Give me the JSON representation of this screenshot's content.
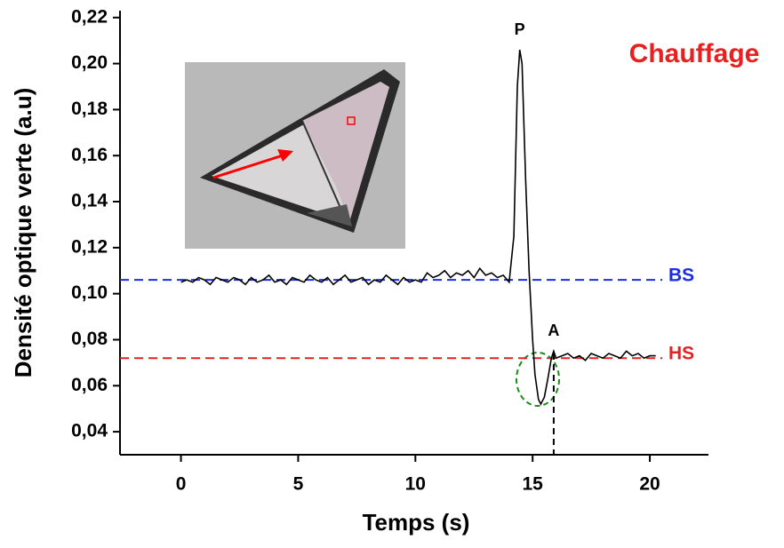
{
  "chart_data": {
    "type": "line",
    "title": "Chauffage",
    "x_label": "Temps (s)",
    "y_label": "Densité optique verte (a.u)",
    "xlim": [
      -2.6,
      22.5
    ],
    "ylim": [
      0.03,
      0.223
    ],
    "xticks": [
      0,
      5,
      10,
      15,
      20
    ],
    "yticks": [
      {
        "value": 0.04,
        "label": "0,04"
      },
      {
        "value": 0.06,
        "label": "0,06"
      },
      {
        "value": 0.08,
        "label": "0,08"
      },
      {
        "value": 0.1,
        "label": "0,10"
      },
      {
        "value": 0.12,
        "label": "0,12"
      },
      {
        "value": 0.14,
        "label": "0,14"
      },
      {
        "value": 0.16,
        "label": "0,16"
      },
      {
        "value": 0.18,
        "label": "0,18"
      },
      {
        "value": 0.2,
        "label": "0,20"
      },
      {
        "value": 0.22,
        "label": "0,22"
      }
    ],
    "series": [
      {
        "color": "#000000",
        "x": [
          0,
          0.25,
          0.5,
          0.75,
          1,
          1.25,
          1.5,
          1.75,
          2,
          2.25,
          2.5,
          2.75,
          3,
          3.25,
          3.5,
          3.75,
          4,
          4.25,
          4.5,
          4.75,
          5,
          5.25,
          5.5,
          5.75,
          6,
          6.25,
          6.5,
          6.75,
          7,
          7.25,
          7.5,
          7.75,
          8,
          8.25,
          8.5,
          8.75,
          9,
          9.25,
          9.5,
          9.75,
          10,
          10.25,
          10.5,
          10.75,
          11,
          11.25,
          11.5,
          11.75,
          12,
          12.25,
          12.5,
          12.75,
          13,
          13.25,
          13.5,
          13.75,
          14,
          14.2,
          14.35,
          14.45,
          14.55,
          14.7,
          14.85,
          15,
          15.1,
          15.25,
          15.35,
          15.5,
          15.65,
          15.8,
          15.9,
          16,
          16.25,
          16.5,
          16.75,
          17,
          17.25,
          17.5,
          17.75,
          18,
          18.25,
          18.5,
          18.75,
          19,
          19.25,
          19.5,
          19.75,
          20,
          20.25
        ],
        "values": [
          0.105,
          0.106,
          0.105,
          0.107,
          0.106,
          0.104,
          0.107,
          0.106,
          0.105,
          0.107,
          0.106,
          0.104,
          0.107,
          0.105,
          0.106,
          0.108,
          0.105,
          0.106,
          0.104,
          0.107,
          0.106,
          0.105,
          0.108,
          0.106,
          0.105,
          0.107,
          0.104,
          0.106,
          0.108,
          0.105,
          0.106,
          0.107,
          0.104,
          0.106,
          0.105,
          0.108,
          0.106,
          0.104,
          0.107,
          0.105,
          0.106,
          0.105,
          0.109,
          0.107,
          0.108,
          0.11,
          0.107,
          0.109,
          0.108,
          0.11,
          0.107,
          0.111,
          0.108,
          0.109,
          0.107,
          0.108,
          0.105,
          0.125,
          0.19,
          0.206,
          0.2,
          0.15,
          0.11,
          0.08,
          0.065,
          0.054,
          0.052,
          0.055,
          0.063,
          0.072,
          0.075,
          0.072,
          0.073,
          0.074,
          0.072,
          0.073,
          0.071,
          0.074,
          0.073,
          0.072,
          0.074,
          0.073,
          0.072,
          0.075,
          0.073,
          0.074,
          0.072,
          0.073,
          0.073
        ]
      }
    ],
    "reference_lines": [
      {
        "label": "BS",
        "value": 0.106,
        "color": "#1a2ee8"
      },
      {
        "label": "HS",
        "value": 0.072,
        "color": "#e82020"
      }
    ],
    "annotations": [
      {
        "text": "P",
        "x": 14.45,
        "y": 0.206
      },
      {
        "text": "A",
        "x": 15.9,
        "y": 0.075
      }
    ],
    "marker_x": 15.9
  }
}
